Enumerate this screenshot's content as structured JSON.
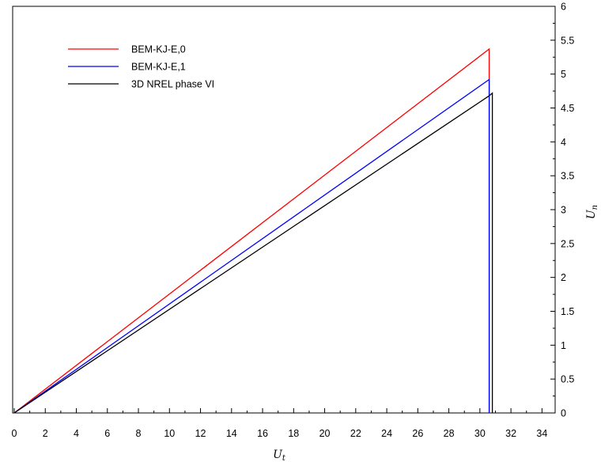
{
  "chart_data": {
    "type": "line",
    "xlabel": "U_t",
    "ylabel": "U_n",
    "xlim": [
      0,
      35
    ],
    "ylim": [
      0,
      6
    ],
    "x_ticks": [
      "0",
      "2",
      "4",
      "6",
      "8",
      "10",
      "12",
      "14",
      "16",
      "18",
      "20",
      "22",
      "24",
      "26",
      "28",
      "30",
      "32",
      "34"
    ],
    "y_ticks": [
      "0",
      "0.5",
      "1",
      "1.5",
      "2",
      "2.5",
      "3",
      "3.5",
      "4",
      "4.5",
      "5",
      "5.5",
      "6"
    ],
    "y_axis_side": "right",
    "grid": false,
    "legend_position": "top-left",
    "series": [
      {
        "name": "BEM-KJ-E,0",
        "color": "#ff0000",
        "x": [
          0,
          30.6,
          30.6
        ],
        "y": [
          0,
          5.37,
          0
        ]
      },
      {
        "name": "BEM-KJ-E,1",
        "color": "#0000ff",
        "x": [
          0,
          30.6,
          30.6
        ],
        "y": [
          0,
          4.92,
          0
        ]
      },
      {
        "name": "3D NREL phase VI",
        "color": "#000000",
        "x": [
          0,
          30.6,
          30.8,
          30.8
        ],
        "y": [
          0,
          4.68,
          4.72,
          0
        ]
      }
    ]
  }
}
